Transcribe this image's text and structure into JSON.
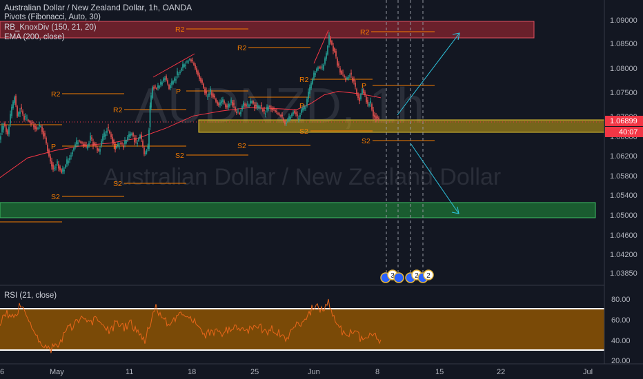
{
  "header": {
    "title": "Australian Dollar / New Zealand Dollar, 1h, OANDA",
    "indicators": [
      "Pivots (Fibonacci, Auto, 30)",
      "RB_KnoxDiv (150, 21, 20)",
      "EMA (200, close)"
    ]
  },
  "watermark": {
    "symbol": "AUDNZD, 1h",
    "name": "Australian Dollar / New Zealand Dollar"
  },
  "price_axis": {
    "ticks": [
      "1.09000",
      "1.08500",
      "1.08000",
      "1.07500",
      "1.07000",
      "1.06600",
      "1.06200",
      "1.05800",
      "1.05400",
      "1.05000",
      "1.04600",
      "1.04200",
      "1.03850"
    ],
    "last_price": "1.06899",
    "countdown": "40:07",
    "price_badge_color": "#f23645"
  },
  "time_axis": {
    "ticks": [
      "6",
      "May",
      "11",
      "18",
      "25",
      "Jun",
      "8",
      "15",
      "22",
      "Jul"
    ]
  },
  "rsi_panel": {
    "label": "RSI (21, close)",
    "ticks": [
      "80.00",
      "60.00",
      "40.00",
      "20.00"
    ]
  },
  "zones": {
    "resistance_color": "#b22833",
    "supply_demand_color": "#c8a415",
    "support_color": "#1e7a36"
  },
  "pivots": {
    "labels": [
      "R2",
      "R2",
      "R2",
      "R2",
      "R2",
      "R2",
      "P",
      "P",
      "P",
      "P",
      "P",
      "S2",
      "S2",
      "S2",
      "S2",
      "S2",
      "S2"
    ]
  },
  "event_badges": [
    "3",
    "2",
    "2"
  ],
  "chart_data": {
    "type": "candlestick",
    "title": "Australian Dollar / New Zealand Dollar, 1h, OANDA",
    "price_range": [
      1.0368,
      1.0923
    ],
    "resistance_zone": [
      1.0865,
      1.0885
    ],
    "yellow_zone": [
      1.0663,
      1.0684
    ],
    "support_zone": [
      1.0496,
      1.052
    ],
    "rsi_band": [
      30,
      70
    ],
    "ema_color": "#f23645",
    "price_path": [
      [
        0,
        1.066
      ],
      [
        6,
        1.069
      ],
      [
        12,
        1.067
      ],
      [
        18,
        1.072
      ],
      [
        22,
        1.0745
      ],
      [
        26,
        1.0705
      ],
      [
        30,
        1.072
      ],
      [
        36,
        1.07
      ],
      [
        42,
        1.0695
      ],
      [
        48,
        1.069
      ],
      [
        54,
        1.068
      ],
      [
        60,
        1.0685
      ],
      [
        66,
        1.066
      ],
      [
        72,
        1.0625
      ],
      [
        78,
        1.06
      ],
      [
        84,
        1.061
      ],
      [
        90,
        1.059
      ],
      [
        96,
        1.0605
      ],
      [
        102,
        1.0625
      ],
      [
        108,
        1.064
      ],
      [
        114,
        1.0655
      ],
      [
        120,
        1.065
      ],
      [
        126,
        1.064
      ],
      [
        132,
        1.066
      ],
      [
        138,
        1.0645
      ],
      [
        144,
        1.0635
      ],
      [
        150,
        1.066
      ],
      [
        156,
        1.068
      ],
      [
        162,
        1.0665
      ],
      [
        168,
        1.064
      ],
      [
        174,
        1.065
      ],
      [
        180,
        1.0645
      ],
      [
        186,
        1.066
      ],
      [
        192,
        1.067
      ],
      [
        198,
        1.065
      ],
      [
        204,
        1.0665
      ],
      [
        210,
        1.063
      ],
      [
        215,
        1.064
      ],
      [
        218,
        1.072
      ],
      [
        222,
        1.0765
      ],
      [
        228,
        1.076
      ],
      [
        234,
        1.077
      ],
      [
        240,
        1.0785
      ],
      [
        246,
        1.076
      ],
      [
        252,
        1.0775
      ],
      [
        258,
        1.079
      ],
      [
        264,
        1.08
      ],
      [
        270,
        1.0815
      ],
      [
        276,
        1.082
      ],
      [
        282,
        1.081
      ],
      [
        288,
        1.079
      ],
      [
        294,
        1.077
      ],
      [
        300,
        1.0745
      ],
      [
        306,
        1.0755
      ],
      [
        312,
        1.074
      ],
      [
        318,
        1.0725
      ],
      [
        324,
        1.0735
      ],
      [
        330,
        1.072
      ],
      [
        336,
        1.0735
      ],
      [
        342,
        1.0715
      ],
      [
        348,
        1.071
      ],
      [
        354,
        1.073
      ],
      [
        360,
        1.0725
      ],
      [
        366,
        1.0735
      ],
      [
        372,
        1.072
      ],
      [
        378,
        1.0725
      ],
      [
        384,
        1.071
      ],
      [
        390,
        1.0725
      ],
      [
        396,
        1.072
      ],
      [
        402,
        1.071
      ],
      [
        408,
        1.0705
      ],
      [
        414,
        1.069
      ],
      [
        420,
        1.07
      ],
      [
        426,
        1.0715
      ],
      [
        432,
        1.07
      ],
      [
        438,
        1.0715
      ],
      [
        444,
        1.0725
      ],
      [
        450,
        1.076
      ],
      [
        456,
        1.079
      ],
      [
        462,
        1.0805
      ],
      [
        468,
        1.08
      ],
      [
        474,
        1.083
      ],
      [
        478,
        1.0865
      ],
      [
        482,
        1.085
      ],
      [
        486,
        1.0835
      ],
      [
        490,
        1.081
      ],
      [
        496,
        1.079
      ],
      [
        502,
        1.078
      ],
      [
        508,
        1.079
      ],
      [
        514,
        1.077
      ],
      [
        518,
        1.075
      ],
      [
        522,
        1.074
      ],
      [
        526,
        1.076
      ],
      [
        530,
        1.0745
      ],
      [
        534,
        1.0725
      ],
      [
        538,
        1.073
      ],
      [
        542,
        1.071
      ],
      [
        546,
        1.0705
      ],
      [
        550,
        1.07
      ]
    ],
    "ema_path": [
      [
        0,
        1.058
      ],
      [
        40,
        1.062
      ],
      [
        80,
        1.0635
      ],
      [
        120,
        1.0645
      ],
      [
        160,
        1.065
      ],
      [
        200,
        1.066
      ],
      [
        240,
        1.068
      ],
      [
        280,
        1.0705
      ],
      [
        320,
        1.0715
      ],
      [
        360,
        1.0722
      ],
      [
        400,
        1.072
      ],
      [
        430,
        1.0718
      ],
      [
        450,
        1.073
      ],
      [
        470,
        1.0748
      ],
      [
        490,
        1.0755
      ],
      [
        510,
        1.0752
      ],
      [
        530,
        1.0748
      ],
      [
        552,
        1.0742
      ]
    ],
    "rsi_path": [
      [
        0,
        58
      ],
      [
        10,
        66
      ],
      [
        20,
        62
      ],
      [
        30,
        74
      ],
      [
        40,
        62
      ],
      [
        50,
        46
      ],
      [
        60,
        38
      ],
      [
        70,
        30
      ],
      [
        80,
        34
      ],
      [
        90,
        42
      ],
      [
        100,
        52
      ],
      [
        110,
        56
      ],
      [
        120,
        60
      ],
      [
        130,
        54
      ],
      [
        140,
        63
      ],
      [
        150,
        56
      ],
      [
        160,
        48
      ],
      [
        170,
        58
      ],
      [
        180,
        52
      ],
      [
        190,
        56
      ],
      [
        200,
        48
      ],
      [
        210,
        40
      ],
      [
        218,
        56
      ],
      [
        226,
        70
      ],
      [
        234,
        62
      ],
      [
        244,
        56
      ],
      [
        254,
        60
      ],
      [
        264,
        64
      ],
      [
        274,
        62
      ],
      [
        284,
        56
      ],
      [
        294,
        44
      ],
      [
        304,
        46
      ],
      [
        314,
        48
      ],
      [
        324,
        46
      ],
      [
        334,
        52
      ],
      [
        344,
        50
      ],
      [
        354,
        48
      ],
      [
        364,
        52
      ],
      [
        374,
        54
      ],
      [
        384,
        48
      ],
      [
        394,
        50
      ],
      [
        404,
        46
      ],
      [
        414,
        42
      ],
      [
        424,
        48
      ],
      [
        434,
        56
      ],
      [
        444,
        60
      ],
      [
        452,
        70
      ],
      [
        460,
        76
      ],
      [
        468,
        66
      ],
      [
        476,
        78
      ],
      [
        484,
        62
      ],
      [
        494,
        50
      ],
      [
        504,
        44
      ],
      [
        514,
        48
      ],
      [
        524,
        40
      ],
      [
        534,
        46
      ],
      [
        544,
        42
      ],
      [
        552,
        40
      ]
    ],
    "projection_up": [
      [
        1.071,
        "start"
      ],
      [
        1.088,
        "end"
      ]
    ],
    "projection_down": [
      [
        1.066,
        "start"
      ],
      [
        1.0505,
        "end"
      ]
    ]
  }
}
